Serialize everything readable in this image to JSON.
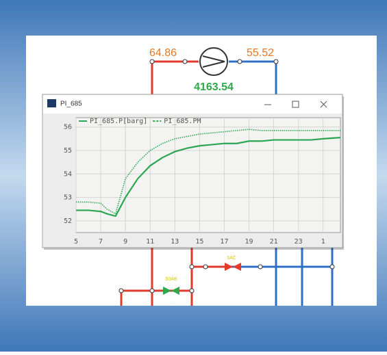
{
  "diagram": {
    "labels": [
      {
        "text": "64.86",
        "color": "#e87722"
      },
      {
        "text": "55.52",
        "color": "#e87722"
      },
      {
        "text": "4163.54",
        "color": "#2ea84a"
      },
      {
        "text": "5AC",
        "color": "#d8c21a"
      },
      {
        "text": "50AB",
        "color": "#d8c21a"
      }
    ]
  },
  "window": {
    "title": "PI_685"
  },
  "chart_data": {
    "type": "line",
    "grid": true,
    "x": [
      5,
      6,
      7,
      7.5,
      8.2,
      9,
      10,
      11,
      12,
      13,
      14,
      15,
      16,
      17,
      18,
      19,
      20,
      21,
      22,
      23,
      24,
      25,
      26.4
    ],
    "series": [
      {
        "name": "PI_685.P[barg]",
        "color": "#2aa552",
        "style": "solid",
        "values": [
          52.45,
          52.45,
          52.4,
          52.3,
          52.2,
          53.0,
          53.8,
          54.35,
          54.7,
          54.95,
          55.1,
          55.2,
          55.25,
          55.3,
          55.3,
          55.4,
          55.4,
          55.45,
          55.45,
          55.45,
          55.45,
          55.5,
          55.55
        ]
      },
      {
        "name": "PI_685.PM",
        "color": "#2aa552",
        "style": "dotted",
        "values": [
          52.8,
          52.8,
          52.75,
          52.5,
          52.3,
          53.8,
          54.5,
          55.0,
          55.3,
          55.5,
          55.6,
          55.7,
          55.75,
          55.8,
          55.85,
          55.9,
          55.85,
          55.85,
          55.85,
          55.85,
          55.85,
          55.85,
          55.85
        ]
      }
    ],
    "xlim": [
      5,
      26.4
    ],
    "xticks": [
      5,
      7,
      9,
      11,
      13,
      15,
      17,
      19,
      21,
      23,
      {
        "value": 25,
        "label": "1"
      }
    ],
    "ylim": [
      51.5,
      56.4
    ],
    "yticks": [
      52,
      53,
      54,
      55,
      56
    ]
  }
}
